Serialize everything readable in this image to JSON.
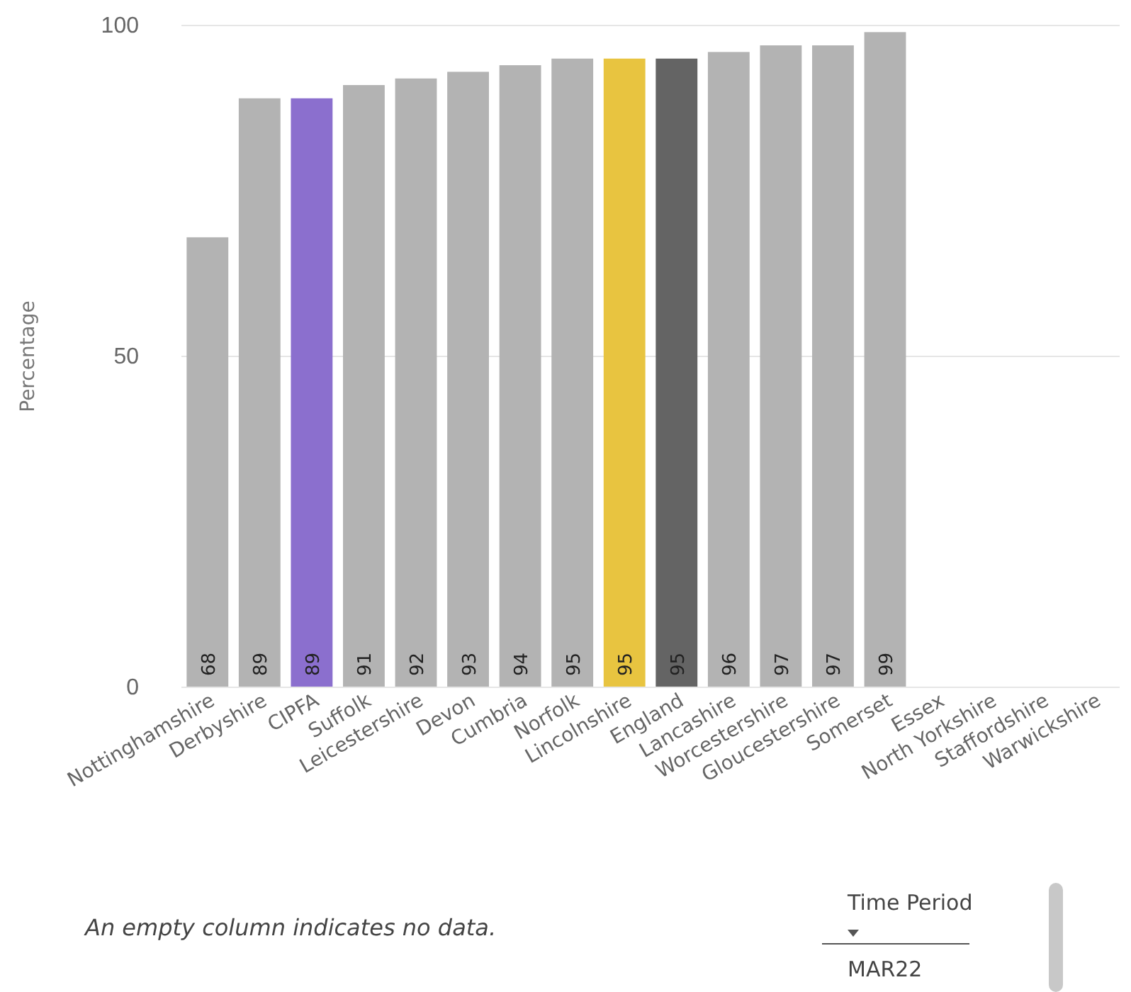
{
  "chart_data": {
    "type": "bar",
    "ylabel": "Percentage",
    "categories": [
      "Nottinghamshire",
      "Derbyshire",
      "CIPFA",
      "Suffolk",
      "Leicestershire",
      "Devon",
      "Cumbria",
      "Norfolk",
      "Lincolnshire",
      "England",
      "Lancashire",
      "Worcestershire",
      "Gloucestershire",
      "Somerset",
      "Essex",
      "North Yorkshire",
      "Staffordshire",
      "Warwickshire"
    ],
    "values": [
      68,
      89,
      89,
      91,
      92,
      93,
      94,
      95,
      95,
      95,
      96,
      97,
      97,
      99,
      null,
      null,
      null,
      null
    ],
    "colors": [
      "#b3b3b3",
      "#b3b3b3",
      "#8b6fce",
      "#b3b3b3",
      "#b3b3b3",
      "#b3b3b3",
      "#b3b3b3",
      "#b3b3b3",
      "#e8c440",
      "#646464",
      "#b3b3b3",
      "#b3b3b3",
      "#b3b3b3",
      "#b3b3b3",
      null,
      null,
      null,
      null
    ],
    "ylim": [
      0,
      100
    ],
    "yticks": [
      0,
      50,
      100
    ],
    "grid": "y",
    "data_labels": true,
    "annotations": [
      "An empty column indicates no data.",
      "Time Period",
      "MAR22"
    ]
  }
}
